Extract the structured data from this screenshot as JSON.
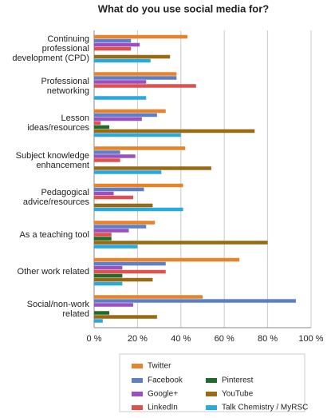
{
  "chart_data": {
    "type": "bar",
    "orientation": "horizontal",
    "title": "What do you use social media for?",
    "categories": [
      "Continuing professional development (CPD)",
      "Professional networking",
      "Lesson ideas/resources",
      "Subject knowledge enhancement",
      "Pedagogical advice/resources",
      "As a teaching tool",
      "Other work related",
      "Social/non-work related"
    ],
    "series": [
      {
        "name": "Twitter",
        "color": "#e8832a",
        "values": [
          43,
          38,
          33,
          42,
          41,
          28,
          67,
          50
        ]
      },
      {
        "name": "Facebook",
        "color": "#5b7fc9",
        "values": [
          17,
          38,
          29,
          12,
          23,
          24,
          33,
          93
        ]
      },
      {
        "name": "Google+",
        "color": "#9b4fc1",
        "values": [
          21,
          24,
          22,
          19,
          9,
          16,
          13,
          18
        ]
      },
      {
        "name": "LinkedIn",
        "color": "#e0504c",
        "values": [
          17,
          47,
          3,
          12,
          18,
          8,
          33,
          0
        ]
      },
      {
        "name": "Pinterest",
        "color": "#1e6b2a",
        "values": [
          0,
          0,
          7,
          0,
          0,
          8,
          13,
          7
        ]
      },
      {
        "name": "YouTube",
        "color": "#9a6a12",
        "values": [
          35,
          0,
          74,
          54,
          27,
          80,
          27,
          29
        ]
      },
      {
        "name": "Talk Chemistry / MyRSC",
        "color": "#29a9e0",
        "values": [
          26,
          24,
          40,
          31,
          41,
          20,
          13,
          4
        ]
      }
    ],
    "xlim": [
      0,
      100
    ],
    "xticks": [
      {
        "value": 0,
        "label": "0 %"
      },
      {
        "value": 20,
        "label": "20 %"
      },
      {
        "value": 40,
        "label": "40 %"
      },
      {
        "value": 60,
        "label": "60 %"
      },
      {
        "value": 80,
        "label": "80 %"
      },
      {
        "value": 100,
        "label": "100 %"
      }
    ],
    "grid": true
  }
}
